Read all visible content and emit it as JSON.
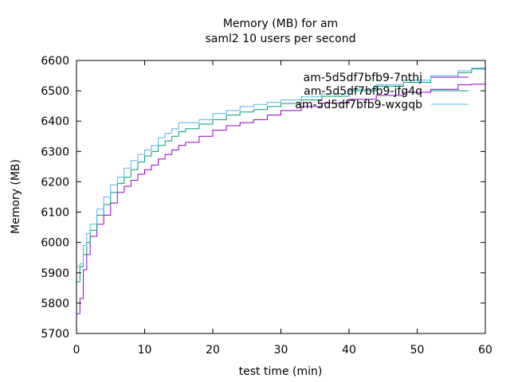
{
  "chart_data": {
    "type": "line",
    "title": "Memory (MB) for am",
    "subtitle": "saml2 10 users per second",
    "xlabel": "test time (min)",
    "ylabel": "Memory (MB)",
    "xlim": [
      0,
      60
    ],
    "ylim": [
      5700,
      6600
    ],
    "xticks": [
      0,
      10,
      20,
      30,
      40,
      50,
      60
    ],
    "yticks": [
      5700,
      5800,
      5900,
      6000,
      6100,
      6200,
      6300,
      6400,
      6500,
      6600
    ],
    "grid": false,
    "legend_position": "top-right",
    "line_style": "step",
    "series": [
      {
        "name": "am-5d5df7bfb9-7nthj",
        "color": "#9400d3",
        "x": [
          0,
          0.5,
          1,
          1.5,
          2,
          3,
          4,
          5,
          6,
          7,
          8,
          9,
          10,
          11,
          12,
          13,
          14,
          15,
          16,
          18,
          20,
          22,
          24,
          26,
          28,
          30,
          33,
          36,
          40,
          44,
          48,
          52,
          56,
          58,
          60
        ],
        "y": [
          5765,
          5815,
          5910,
          5960,
          6020,
          6060,
          6090,
          6130,
          6165,
          6185,
          6205,
          6225,
          6240,
          6255,
          6275,
          6290,
          6305,
          6320,
          6330,
          6350,
          6370,
          6385,
          6395,
          6405,
          6420,
          6435,
          6448,
          6460,
          6472,
          6485,
          6495,
          6505,
          6520,
          6522,
          6520
        ]
      },
      {
        "name": "am-5d5df7bfb9-jfg4q",
        "color": "#009e73",
        "x": [
          0,
          0.5,
          1,
          1.5,
          2,
          3,
          4,
          5,
          6,
          7,
          8,
          9,
          10,
          11,
          12,
          13,
          14,
          15,
          16,
          18,
          20,
          22,
          24,
          26,
          28,
          30,
          33,
          36,
          40,
          44,
          48,
          52,
          56,
          58,
          60
        ],
        "y": [
          5870,
          5920,
          5960,
          6000,
          6040,
          6090,
          6125,
          6165,
          6195,
          6215,
          6240,
          6265,
          6285,
          6300,
          6320,
          6335,
          6350,
          6365,
          6375,
          6390,
          6405,
          6420,
          6430,
          6438,
          6448,
          6458,
          6470,
          6482,
          6500,
          6515,
          6528,
          6545,
          6560,
          6572,
          6576
        ]
      },
      {
        "name": "am-5d5df7bfb9-wxgqb",
        "color": "#56b4e9",
        "x": [
          0,
          0.5,
          1,
          1.5,
          2,
          3,
          4,
          5,
          6,
          7,
          8,
          9,
          10,
          11,
          12,
          13,
          14,
          15,
          16,
          18,
          20,
          22,
          24,
          26,
          28,
          30,
          33,
          36,
          40,
          44,
          48,
          52,
          56,
          58,
          60
        ],
        "y": [
          5920,
          5930,
          5990,
          6030,
          6060,
          6110,
          6150,
          6190,
          6215,
          6245,
          6270,
          6290,
          6305,
          6320,
          6345,
          6360,
          6375,
          6395,
          6395,
          6405,
          6425,
          6435,
          6448,
          6455,
          6462,
          6470,
          6480,
          6490,
          6505,
          6520,
          6535,
          6550,
          6566,
          6575,
          6578
        ]
      }
    ]
  }
}
